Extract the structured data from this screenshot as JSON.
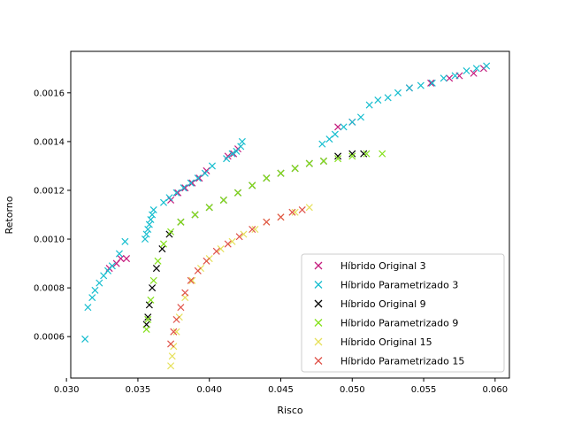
{
  "chart_data": {
    "type": "scatter",
    "xlabel": "Risco",
    "ylabel": "Retorno",
    "xlim": [
      0.0303,
      0.061
    ],
    "ylim": [
      0.00043,
      0.00177
    ],
    "xticks": [
      0.03,
      0.035,
      0.04,
      0.045,
      0.05,
      0.055,
      0.06
    ],
    "xtick_labels": [
      "0.030",
      "0.035",
      "0.040",
      "0.045",
      "0.050",
      "0.055",
      "0.060"
    ],
    "yticks": [
      0.0006,
      0.0008,
      0.001,
      0.0012,
      0.0014,
      0.0016
    ],
    "ytick_labels": [
      "0.0006",
      "0.0008",
      "0.0010",
      "0.0012",
      "0.0014",
      "0.0016"
    ],
    "grid": false,
    "legend_position": "lower-right",
    "marker": "x",
    "series": [
      {
        "name": "Híbrido Original 3",
        "color": "#c51b7d",
        "points": [
          [
            0.033,
            0.00088
          ],
          [
            0.0335,
            0.0009
          ],
          [
            0.0338,
            0.00092
          ],
          [
            0.0342,
            0.00092
          ],
          [
            0.0373,
            0.00116
          ],
          [
            0.0378,
            0.00119
          ],
          [
            0.0383,
            0.00121
          ],
          [
            0.0388,
            0.00123
          ],
          [
            0.0393,
            0.00125
          ],
          [
            0.0398,
            0.00128
          ],
          [
            0.0413,
            0.00134
          ],
          [
            0.0417,
            0.00135
          ],
          [
            0.042,
            0.00137
          ],
          [
            0.049,
            0.00146
          ],
          [
            0.05,
            0.00148
          ],
          [
            0.054,
            0.00162
          ],
          [
            0.0555,
            0.00164
          ],
          [
            0.0568,
            0.00166
          ],
          [
            0.0575,
            0.00167
          ],
          [
            0.0585,
            0.00168
          ],
          [
            0.0592,
            0.0017
          ]
        ]
      },
      {
        "name": "Híbrido Parametrizado 3",
        "color": "#17becf",
        "points": [
          [
            0.0313,
            0.00059
          ],
          [
            0.0315,
            0.00072
          ],
          [
            0.0318,
            0.00076
          ],
          [
            0.032,
            0.00079
          ],
          [
            0.0323,
            0.00082
          ],
          [
            0.0326,
            0.00085
          ],
          [
            0.0329,
            0.00087
          ],
          [
            0.0332,
            0.00089
          ],
          [
            0.0337,
            0.00094
          ],
          [
            0.0341,
            0.00099
          ],
          [
            0.0355,
            0.001
          ],
          [
            0.0356,
            0.00102
          ],
          [
            0.0357,
            0.00104
          ],
          [
            0.0358,
            0.00106
          ],
          [
            0.0359,
            0.00108
          ],
          [
            0.036,
            0.0011
          ],
          [
            0.0361,
            0.00112
          ],
          [
            0.0368,
            0.00115
          ],
          [
            0.0372,
            0.00117
          ],
          [
            0.0377,
            0.00119
          ],
          [
            0.0382,
            0.00121
          ],
          [
            0.0387,
            0.00123
          ],
          [
            0.0392,
            0.00125
          ],
          [
            0.0397,
            0.00127
          ],
          [
            0.0402,
            0.0013
          ],
          [
            0.0412,
            0.00133
          ],
          [
            0.0416,
            0.00135
          ],
          [
            0.0419,
            0.00136
          ],
          [
            0.0422,
            0.00138
          ],
          [
            0.0423,
            0.0014
          ],
          [
            0.0479,
            0.00139
          ],
          [
            0.0484,
            0.00141
          ],
          [
            0.0488,
            0.00143
          ],
          [
            0.0494,
            0.00146
          ],
          [
            0.05,
            0.00148
          ],
          [
            0.0506,
            0.0015
          ],
          [
            0.0512,
            0.00155
          ],
          [
            0.0518,
            0.00157
          ],
          [
            0.0525,
            0.00158
          ],
          [
            0.0532,
            0.0016
          ],
          [
            0.054,
            0.00162
          ],
          [
            0.0548,
            0.00163
          ],
          [
            0.0556,
            0.00164
          ],
          [
            0.0564,
            0.00166
          ],
          [
            0.0572,
            0.00167
          ],
          [
            0.058,
            0.00169
          ],
          [
            0.0587,
            0.0017
          ],
          [
            0.0594,
            0.00171
          ]
        ]
      },
      {
        "name": "Híbrido Original 9",
        "color": "#000000",
        "points": [
          [
            0.0356,
            0.00065
          ],
          [
            0.0357,
            0.00068
          ],
          [
            0.0358,
            0.00073
          ],
          [
            0.036,
            0.0008
          ],
          [
            0.0363,
            0.00088
          ],
          [
            0.0367,
            0.00096
          ],
          [
            0.0372,
            0.00102
          ],
          [
            0.038,
            0.00107
          ],
          [
            0.039,
            0.0011
          ],
          [
            0.04,
            0.00113
          ],
          [
            0.041,
            0.00116
          ],
          [
            0.042,
            0.00119
          ],
          [
            0.043,
            0.00122
          ],
          [
            0.044,
            0.00125
          ],
          [
            0.045,
            0.00127
          ],
          [
            0.046,
            0.00129
          ],
          [
            0.047,
            0.00131
          ],
          [
            0.048,
            0.00132
          ],
          [
            0.049,
            0.00134
          ],
          [
            0.05,
            0.00135
          ],
          [
            0.0508,
            0.00135
          ]
        ]
      },
      {
        "name": "Híbrido Parametrizado 9",
        "color": "#84e11a",
        "points": [
          [
            0.0356,
            0.00063
          ],
          [
            0.0357,
            0.00067
          ],
          [
            0.0359,
            0.00075
          ],
          [
            0.0361,
            0.00083
          ],
          [
            0.0364,
            0.00091
          ],
          [
            0.0368,
            0.00098
          ],
          [
            0.0373,
            0.00103
          ],
          [
            0.038,
            0.00107
          ],
          [
            0.039,
            0.0011
          ],
          [
            0.04,
            0.00113
          ],
          [
            0.041,
            0.00116
          ],
          [
            0.042,
            0.00119
          ],
          [
            0.043,
            0.00122
          ],
          [
            0.044,
            0.00125
          ],
          [
            0.045,
            0.00127
          ],
          [
            0.046,
            0.00129
          ],
          [
            0.047,
            0.00131
          ],
          [
            0.048,
            0.00132
          ],
          [
            0.049,
            0.00133
          ],
          [
            0.05,
            0.00134
          ],
          [
            0.051,
            0.00135
          ],
          [
            0.0521,
            0.00135
          ]
        ]
      },
      {
        "name": "Híbrido Original 15",
        "color": "#e6e05a",
        "points": [
          [
            0.0373,
            0.00048
          ],
          [
            0.0374,
            0.00052
          ],
          [
            0.0375,
            0.00056
          ],
          [
            0.0377,
            0.00062
          ],
          [
            0.0379,
            0.00068
          ],
          [
            0.0383,
            0.00076
          ],
          [
            0.0388,
            0.00083
          ],
          [
            0.0394,
            0.00088
          ],
          [
            0.04,
            0.00092
          ],
          [
            0.0408,
            0.00096
          ],
          [
            0.0416,
            0.00099
          ],
          [
            0.0424,
            0.00102
          ],
          [
            0.0432,
            0.00104
          ],
          [
            0.044,
            0.00107
          ],
          [
            0.045,
            0.00109
          ],
          [
            0.046,
            0.00111
          ],
          [
            0.047,
            0.00113
          ]
        ]
      },
      {
        "name": "Híbrido Parametrizado 15",
        "color": "#e0534a",
        "points": [
          [
            0.0373,
            0.00057
          ],
          [
            0.0375,
            0.00062
          ],
          [
            0.0377,
            0.00067
          ],
          [
            0.038,
            0.00072
          ],
          [
            0.0383,
            0.00078
          ],
          [
            0.0387,
            0.00083
          ],
          [
            0.0392,
            0.00087
          ],
          [
            0.0398,
            0.00091
          ],
          [
            0.0405,
            0.00095
          ],
          [
            0.0413,
            0.00098
          ],
          [
            0.0421,
            0.00101
          ],
          [
            0.043,
            0.00104
          ],
          [
            0.044,
            0.00107
          ],
          [
            0.045,
            0.00109
          ],
          [
            0.0458,
            0.00111
          ],
          [
            0.0465,
            0.00112
          ]
        ]
      }
    ]
  }
}
